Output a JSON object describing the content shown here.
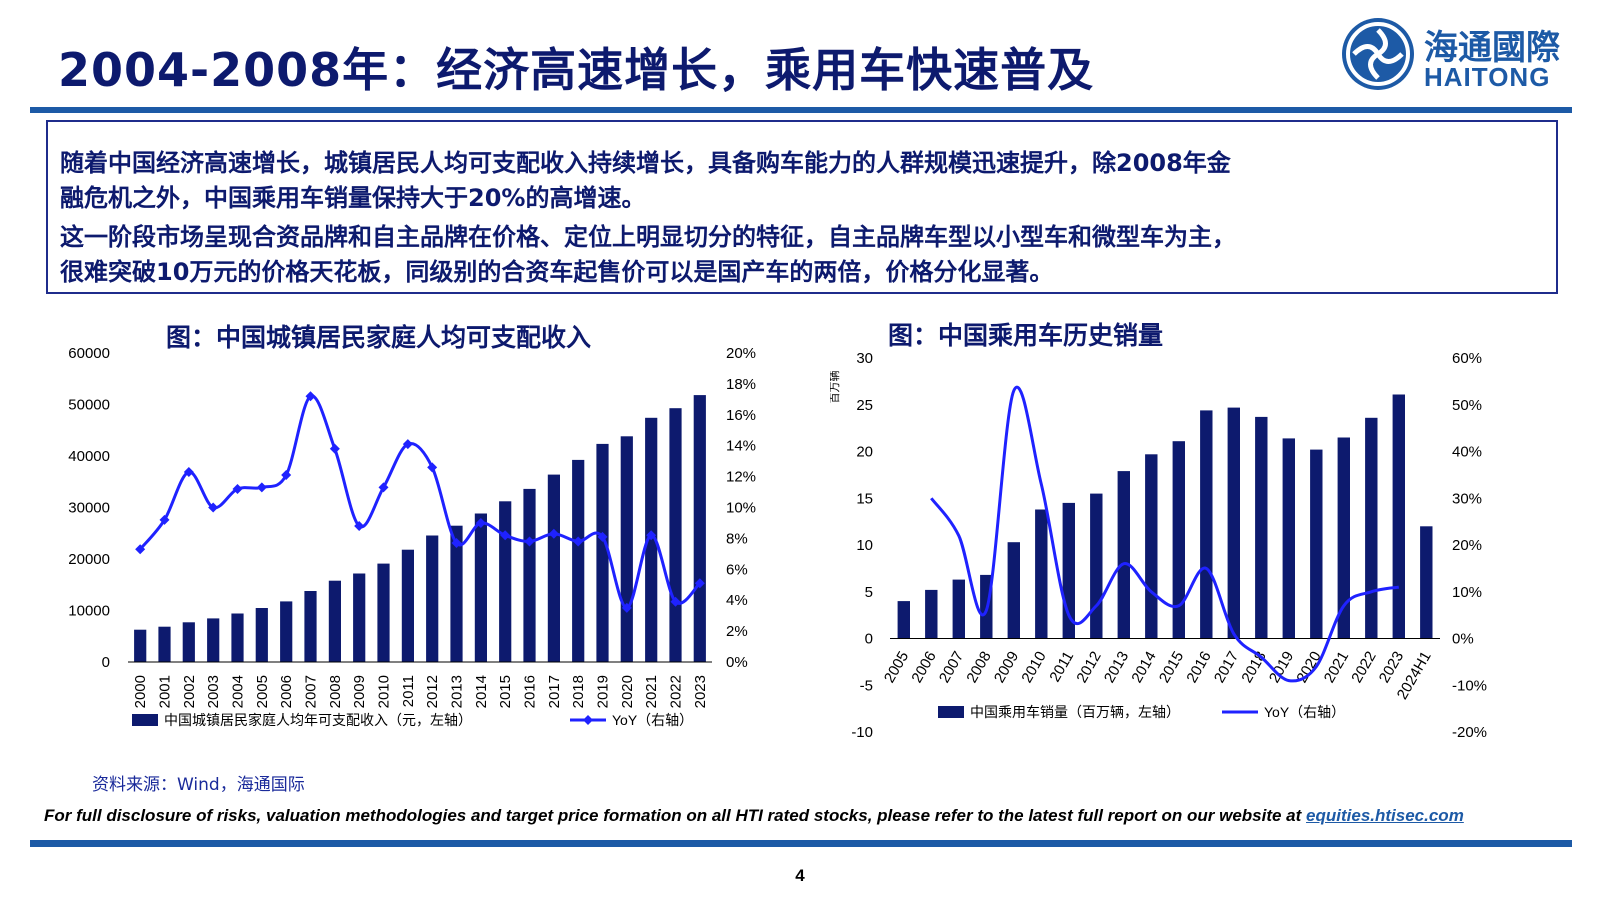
{
  "header": {
    "title": "2004-2008年：经济高速增长，乘用车快速普及",
    "logo_zh": "海通國際",
    "logo_en": "HAITONG"
  },
  "summary": {
    "line1": "随着中国经济高速增长，城镇居民人均可支配收入持续增长，具备购车能力的人群规模迅速提升，除2008年金",
    "line2": "融危机之外，中国乘用车销量保持大于20%的高增速。",
    "line3": "这一阶段市场呈现合资品牌和自主品牌在价格、定位上明显切分的特征，自主品牌车型以小型车和微型车为主，",
    "line4": "很难突破10万元的价格天花板，同级别的合资车起售价可以是国产车的两倍，价格分化显著。"
  },
  "chart1_title": "图：中国城镇居民家庭人均可支配收入",
  "chart2_title": "图：中国乘用车历史销量",
  "source": "资料来源：Wind，海通国际",
  "disclaimer": {
    "text": "For full disclosure of risks, valuation methodologies and target price formation on all HTI rated stocks, please refer to the latest full report on our website at",
    "link": "equities.htisec.com"
  },
  "page_number": "4",
  "colors": {
    "bar": "#0d1a6e",
    "line": "#1f22ff",
    "brand": "#1d5aa6",
    "title": "#0d1a6e"
  },
  "chart_data": [
    {
      "type": "bar",
      "categories": [
        "2000",
        "2001",
        "2002",
        "2003",
        "2004",
        "2005",
        "2006",
        "2007",
        "2008",
        "2009",
        "2010",
        "2011",
        "2012",
        "2013",
        "2014",
        "2015",
        "2016",
        "2017",
        "2018",
        "2019",
        "2020",
        "2021",
        "2022",
        "2023"
      ],
      "series": [
        {
          "name": "中国城镇居民家庭人均年可支配收入（元，左轴）",
          "type": "bar",
          "axis": "left",
          "values": [
            6280,
            6860,
            7703,
            8472,
            9422,
            10493,
            11759,
            13786,
            15781,
            17175,
            19109,
            21810,
            24565,
            26467,
            28844,
            31195,
            33616,
            36396,
            39251,
            42359,
            43834,
            47412,
            49283,
            51821
          ]
        },
        {
          "name": "YoY（右轴）",
          "type": "line",
          "axis": "right",
          "marker": "diamond",
          "values": [
            7.3,
            9.2,
            12.3,
            10.0,
            11.2,
            11.3,
            12.1,
            17.2,
            13.8,
            8.8,
            11.3,
            14.1,
            12.6,
            7.7,
            9.0,
            8.2,
            7.8,
            8.3,
            7.8,
            8.1,
            3.5,
            8.2,
            3.9,
            5.1
          ]
        }
      ],
      "y_left": {
        "min": 0,
        "max": 60000,
        "ticks": [
          0,
          10000,
          20000,
          30000,
          40000,
          50000,
          60000
        ]
      },
      "y_right": {
        "min": 0,
        "max": 20,
        "ticks": [
          "0%",
          "2%",
          "4%",
          "6%",
          "8%",
          "10%",
          "12%",
          "14%",
          "16%",
          "18%",
          "20%"
        ]
      },
      "legend_placement": "bottom",
      "grid": false
    },
    {
      "type": "bar",
      "categories": [
        "2005",
        "2006",
        "2007",
        "2008",
        "2009",
        "2010",
        "2011",
        "2012",
        "2013",
        "2014",
        "2015",
        "2016",
        "2017",
        "2018",
        "2019",
        "2020",
        "2021",
        "2022",
        "2023",
        "2024H1"
      ],
      "series": [
        {
          "name": "中国乘用车销量（百万辆，左轴）",
          "type": "bar",
          "axis": "left",
          "values": [
            4.0,
            5.2,
            6.3,
            6.8,
            10.3,
            13.8,
            14.5,
            15.5,
            17.9,
            19.7,
            21.1,
            24.4,
            24.7,
            23.7,
            21.4,
            20.2,
            21.5,
            23.6,
            26.1,
            12.0
          ]
        },
        {
          "name": "YoY（右轴）",
          "type": "line",
          "axis": "right",
          "values": [
            null,
            30,
            22,
            6,
            53,
            33,
            5,
            7,
            16,
            10,
            7,
            15,
            1,
            -4,
            -9,
            -6,
            7,
            10,
            11,
            null
          ]
        }
      ],
      "y_left": {
        "label": "百万辆",
        "min": -10,
        "max": 30,
        "ticks": [
          -10,
          -5,
          0,
          5,
          10,
          15,
          20,
          25,
          30
        ]
      },
      "y_right": {
        "min": -20,
        "max": 60,
        "ticks": [
          "-20%",
          "-10%",
          "0%",
          "10%",
          "20%",
          "30%",
          "40%",
          "50%",
          "60%"
        ]
      },
      "legend_placement": "bottom",
      "grid": false
    }
  ]
}
